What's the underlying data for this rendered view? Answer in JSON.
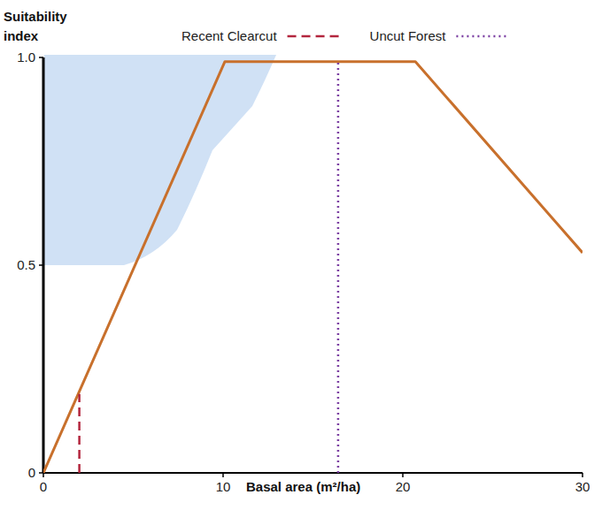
{
  "chart_data": {
    "type": "line",
    "ylabel": "Suitability index",
    "xlabel": "Basal area (m²/ha)",
    "xlim": [
      0,
      30
    ],
    "ylim": [
      0,
      1
    ],
    "xticks": [
      0,
      10,
      20,
      30
    ],
    "yticks": [
      0,
      0.5,
      {
        "value": 1,
        "label": "1.0"
      }
    ],
    "legend": "top",
    "series": [
      {
        "color": "#c8702c",
        "line_style": "solid",
        "x": [
          0,
          10.1,
          20.7,
          30
        ],
        "values": [
          0,
          0.99,
          0.99,
          0.53
        ]
      },
      {
        "name": "Recent Clearcut",
        "color": "#b3263e",
        "line_style": "dashed",
        "x": [
          2,
          2
        ],
        "values": [
          0,
          0.19
        ]
      },
      {
        "name": "Uncut Forest",
        "color": "#7b3fa2",
        "line_style": "dotted",
        "x": [
          16.4,
          16.4
        ],
        "values": [
          0,
          0.99
        ]
      }
    ]
  }
}
